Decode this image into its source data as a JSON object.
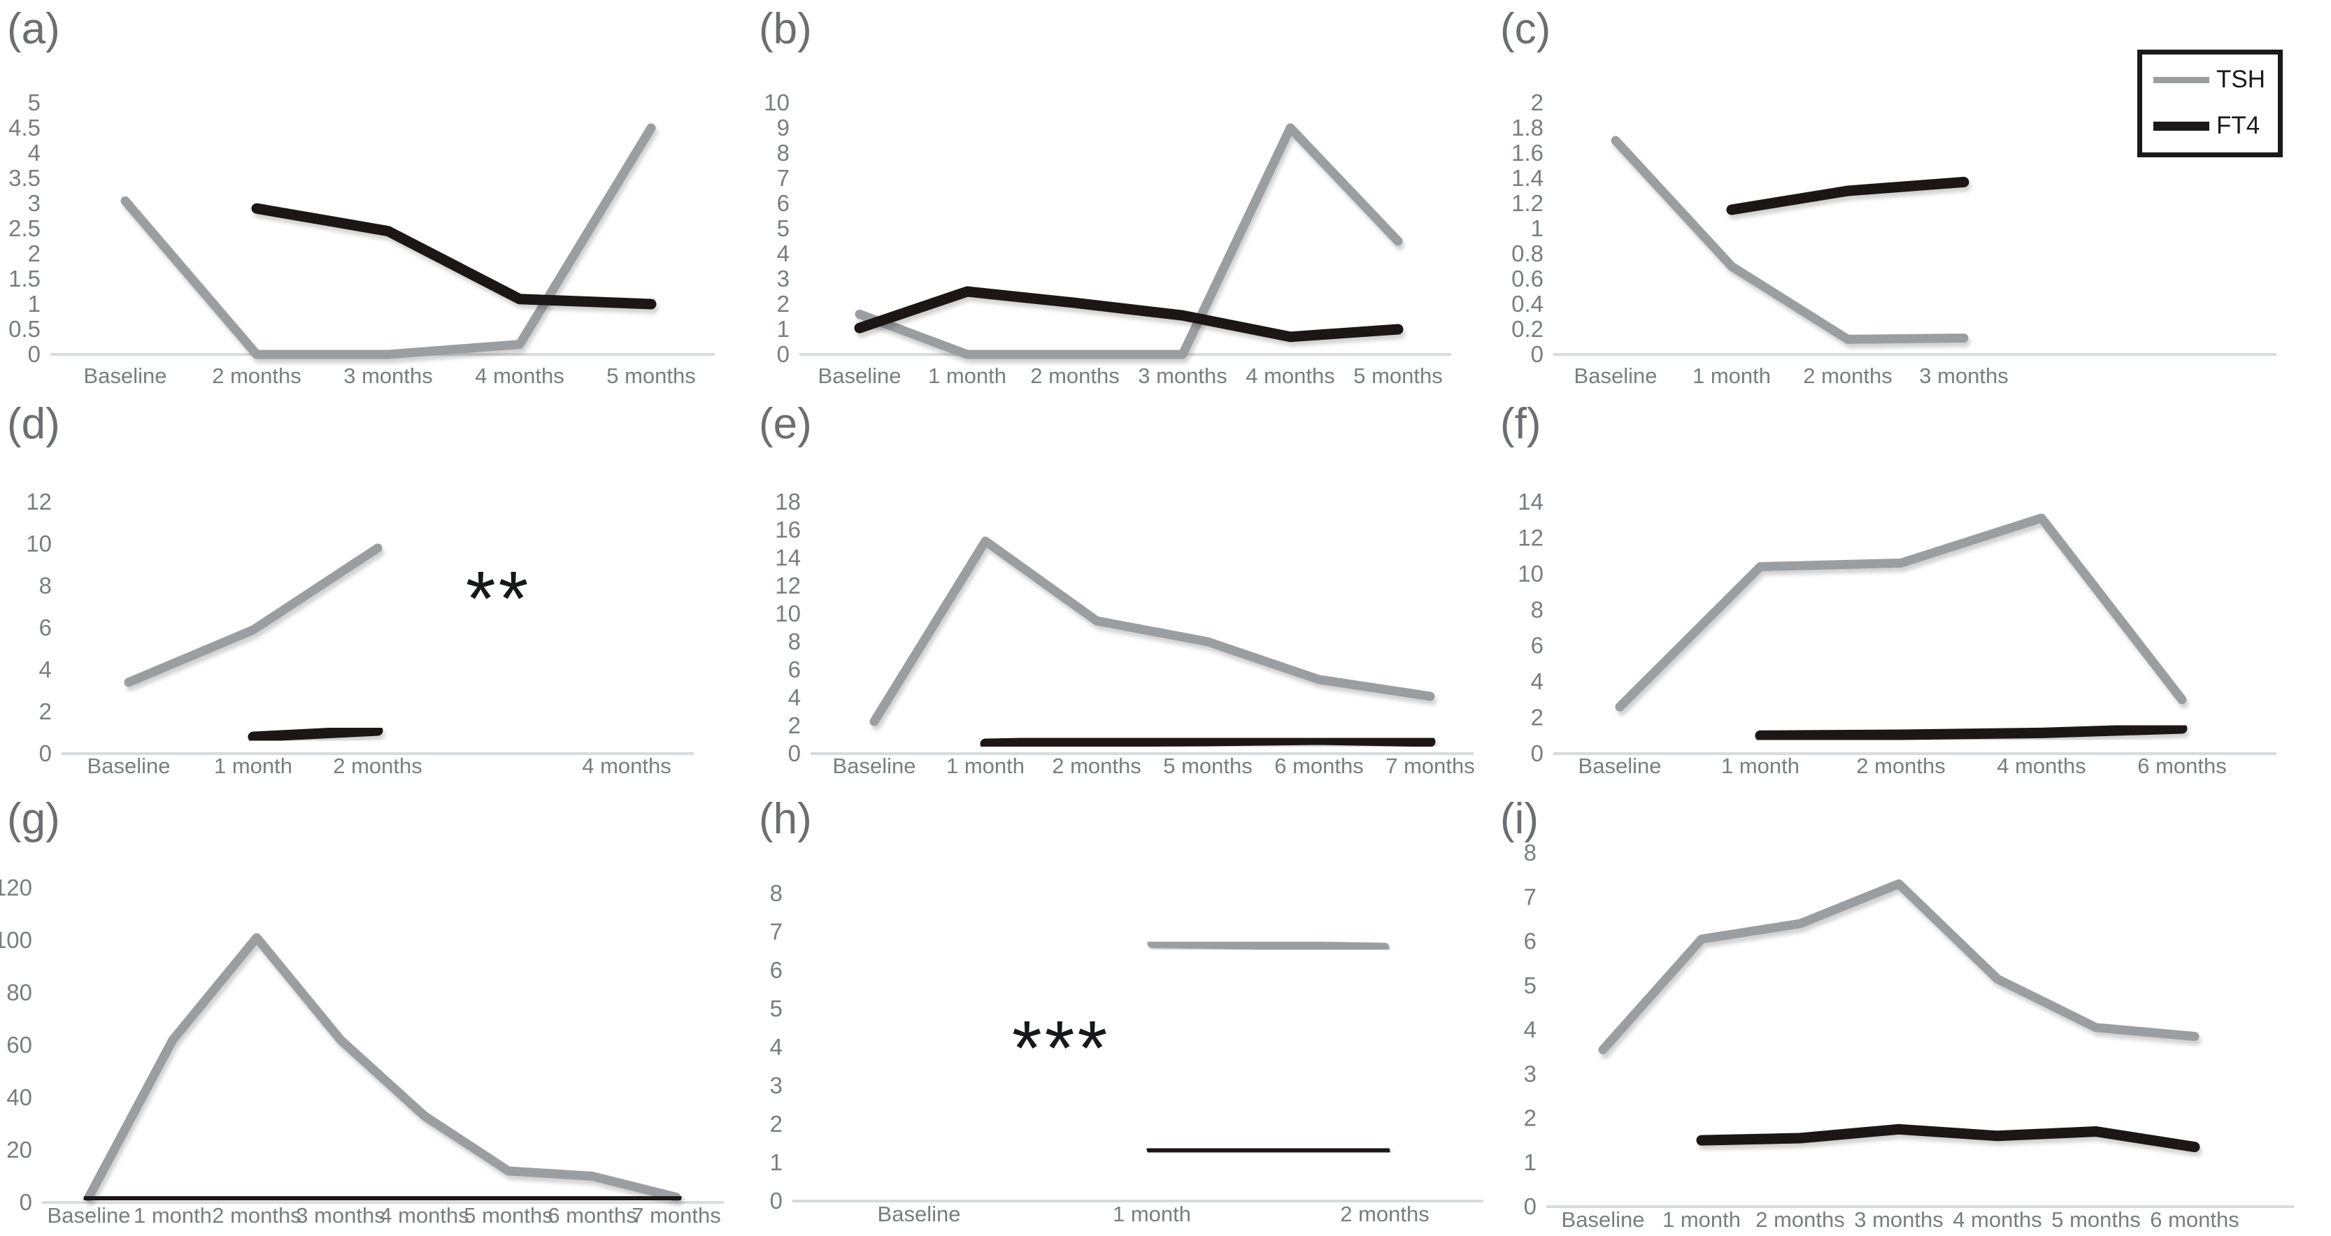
{
  "colors": {
    "tsh": "#9b9ea1",
    "ft4": "#1c1819",
    "axis": "#d9dadb",
    "tick_label": "#7a7d80",
    "panel_label": "#6d6e71",
    "annotation": "#17181a"
  },
  "legend": {
    "position": "top-right",
    "items": [
      {
        "label": "TSH",
        "color": "#9b9ea1"
      },
      {
        "label": "FT4",
        "color": "#1c1819"
      }
    ]
  },
  "chart_data": [
    {
      "panel_label": "(a)",
      "type": "line",
      "categories": [
        "Baseline",
        "2 months",
        "3 months",
        "4 months",
        "5 months"
      ],
      "ylim": [
        0,
        5
      ],
      "ytick_step": 0.5,
      "grid": false,
      "series": [
        {
          "name": "TSH",
          "values": [
            3.05,
            0,
            0,
            0.2,
            4.5
          ]
        },
        {
          "name": "FT4",
          "values": [
            null,
            2.9,
            2.45,
            1.1,
            1.0
          ]
        }
      ]
    },
    {
      "panel_label": "(b)",
      "type": "line",
      "categories": [
        "Baseline",
        "1 month",
        "2 months",
        "3 months",
        "4 months",
        "5 months"
      ],
      "ylim": [
        0,
        10
      ],
      "ytick_step": 1,
      "grid": false,
      "series": [
        {
          "name": "TSH",
          "values": [
            1.6,
            0,
            0,
            0,
            9.0,
            4.5
          ]
        },
        {
          "name": "FT4",
          "values": [
            1.05,
            2.5,
            2.05,
            1.55,
            0.7,
            1.0
          ]
        }
      ]
    },
    {
      "panel_label": "(c)",
      "type": "line",
      "categories": [
        "Baseline",
        "1 month",
        "2 months",
        "3 months",
        "",
        ""
      ],
      "ylim": [
        0,
        2
      ],
      "ytick_step": 0.2,
      "grid": false,
      "series": [
        {
          "name": "TSH",
          "values": [
            1.7,
            0.7,
            0.12,
            0.13,
            null,
            null
          ]
        },
        {
          "name": "FT4",
          "values": [
            null,
            1.15,
            1.3,
            1.37,
            null,
            null
          ]
        }
      ]
    },
    {
      "panel_label": "(d)",
      "type": "line",
      "categories": [
        "Baseline",
        "1 month",
        "2 months",
        "",
        "4 months"
      ],
      "ylim": [
        0,
        12
      ],
      "ytick_step": 2,
      "grid": false,
      "series": [
        {
          "name": "TSH",
          "values": [
            3.4,
            5.9,
            9.8,
            null,
            null
          ]
        },
        {
          "name": "FT4",
          "values": [
            null,
            0.8,
            1.1,
            null,
            null
          ]
        }
      ],
      "annotation": {
        "text": "**",
        "slot": 2.97,
        "value": 7.8
      }
    },
    {
      "panel_label": "(e)",
      "type": "line",
      "categories": [
        "Baseline",
        "1 month",
        "2 months",
        "5 months",
        "6 months",
        "7 months"
      ],
      "ylim": [
        0,
        18
      ],
      "ytick_step": 2,
      "grid": false,
      "series": [
        {
          "name": "TSH",
          "values": [
            2.3,
            15.2,
            9.5,
            8.0,
            5.3,
            4.1
          ]
        },
        {
          "name": "FT4",
          "values": [
            null,
            0.7,
            0.85,
            0.9,
            1.0,
            0.85
          ]
        }
      ]
    },
    {
      "panel_label": "(f)",
      "type": "line",
      "categories": [
        "Baseline",
        "1 month",
        "2 months",
        "4 months",
        "6 months"
      ],
      "ylim": [
        0,
        14
      ],
      "ytick_step": 2,
      "grid": false,
      "series": [
        {
          "name": "TSH",
          "values": [
            2.6,
            10.4,
            10.6,
            13.1,
            3.0
          ]
        },
        {
          "name": "FT4",
          "values": [
            null,
            1.0,
            1.05,
            1.15,
            1.4
          ]
        }
      ]
    },
    {
      "panel_label": "(g)",
      "type": "line",
      "categories": [
        "Baseline",
        "1 month",
        "2 months",
        "3 months",
        "4 months",
        "5 months",
        "6 months",
        "7 months"
      ],
      "ylim": [
        0,
        120
      ],
      "ytick_step": 20,
      "grid": false,
      "series": [
        {
          "name": "TSH",
          "values": [
            2,
            62,
            101,
            62,
            33,
            12,
            10,
            2
          ]
        },
        {
          "name": "FT4",
          "values": [
            1.5,
            1.5,
            1.3,
            2.0,
            1.8,
            1.9,
            1.8,
            2.0
          ]
        }
      ]
    },
    {
      "panel_label": "(h)",
      "type": "line",
      "categories": [
        "Baseline",
        "1 month",
        "2 months"
      ],
      "ylim": [
        0,
        8
      ],
      "ytick_step": 1,
      "grid": false,
      "series": [
        {
          "name": "TSH",
          "values": [
            null,
            6.7,
            6.6
          ]
        },
        {
          "name": "FT4",
          "values": [
            null,
            1.35,
            1.3
          ]
        }
      ],
      "annotation": {
        "text": "***",
        "slot": 0.61,
        "value": 4.2
      }
    },
    {
      "panel_label": "(i)",
      "type": "line",
      "categories": [
        "Baseline",
        "1 month",
        "2 months",
        "3 months",
        "4 months",
        "5 months",
        "6 months"
      ],
      "ylim": [
        0,
        8
      ],
      "ytick_step": 1,
      "grid": false,
      "series": [
        {
          "name": "TSH",
          "values": [
            3.55,
            6.05,
            6.4,
            7.3,
            5.15,
            4.05,
            3.85
          ]
        },
        {
          "name": "FT4",
          "values": [
            null,
            1.5,
            1.55,
            1.75,
            1.6,
            1.7,
            1.35
          ]
        }
      ]
    }
  ]
}
